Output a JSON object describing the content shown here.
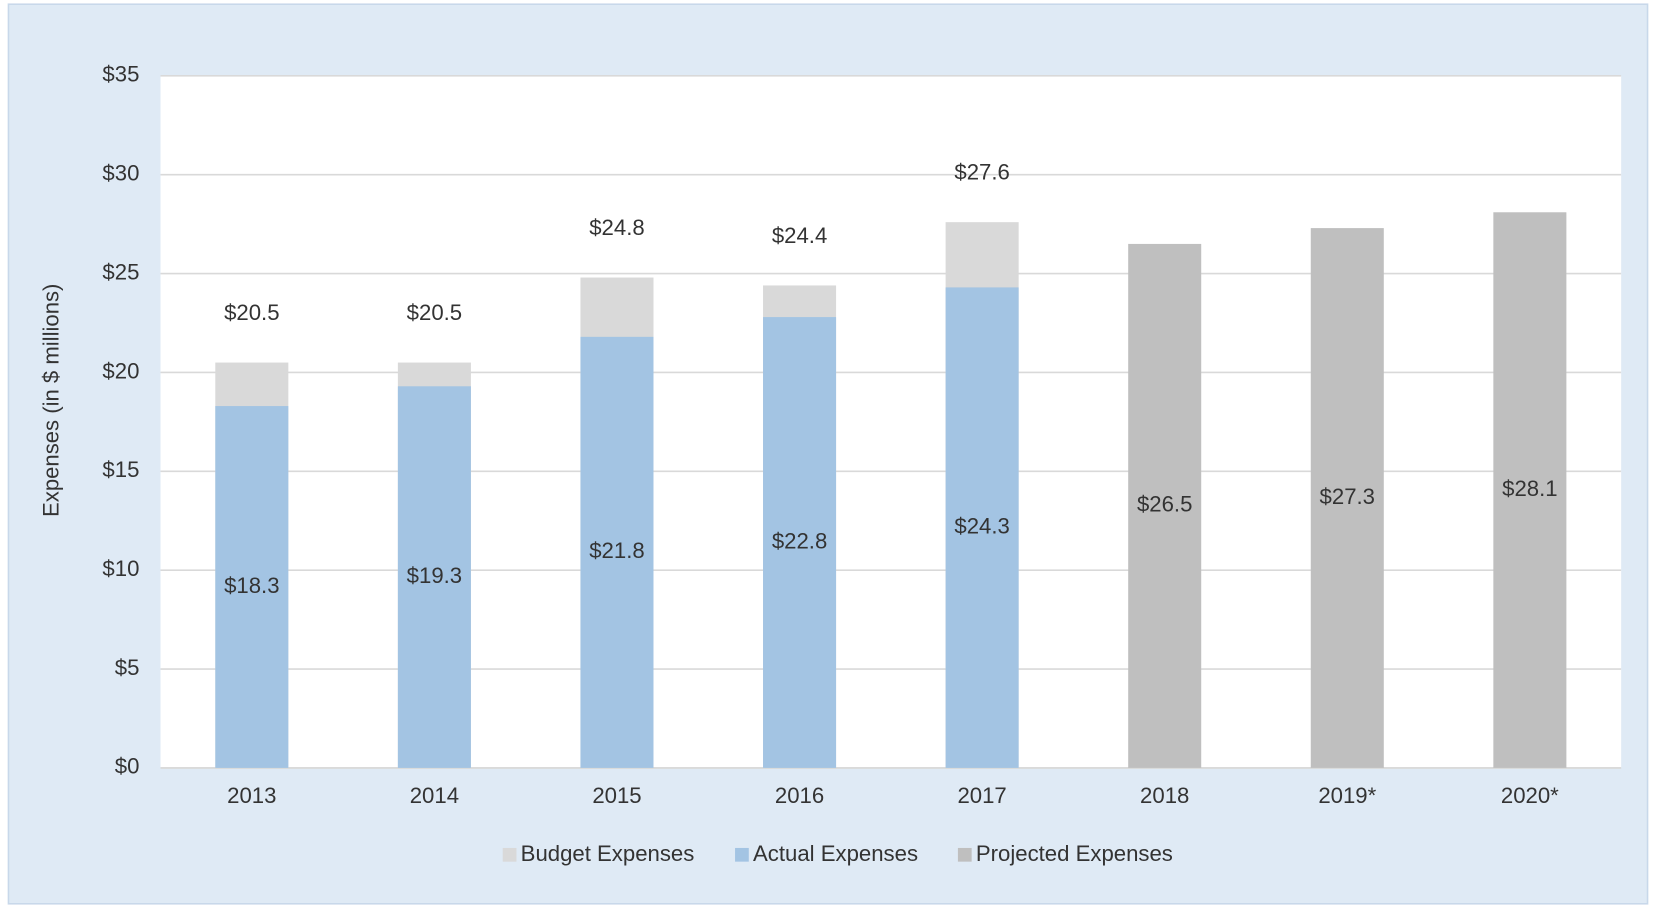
{
  "chart_data": {
    "type": "bar",
    "categories": [
      "2013",
      "2014",
      "2015",
      "2016",
      "2017",
      "2018",
      "2019*",
      "2020*"
    ],
    "series": [
      {
        "name": "Budget Expenses",
        "color": "#d9d9d9",
        "values": [
          20.5,
          20.5,
          24.8,
          24.4,
          27.6,
          null,
          null,
          null
        ],
        "value_labels": [
          "$20.5",
          "$20.5",
          "$24.8",
          "$24.4",
          "$27.6",
          null,
          null,
          null
        ]
      },
      {
        "name": "Actual Expenses",
        "color": "#a3c4e3",
        "values": [
          18.3,
          19.3,
          21.8,
          22.8,
          24.3,
          null,
          null,
          null
        ],
        "value_labels": [
          "$18.3",
          "$19.3",
          "$21.8",
          "$22.8",
          "$24.3",
          null,
          null,
          null
        ]
      },
      {
        "name": "Projected Expenses",
        "color": "#bfbfbf",
        "values": [
          null,
          null,
          null,
          null,
          null,
          26.5,
          27.3,
          28.1
        ],
        "value_labels": [
          null,
          null,
          null,
          null,
          null,
          "$26.5",
          "$27.3",
          "$28.1"
        ]
      }
    ],
    "y_label": "Expenses (in $ millions)",
    "ylim": [
      0,
      35
    ],
    "yticks": [
      {
        "value": 0,
        "label": "$0"
      },
      {
        "value": 5,
        "label": "$5"
      },
      {
        "value": 10,
        "label": "$10"
      },
      {
        "value": 15,
        "label": "$15"
      },
      {
        "value": 20,
        "label": "$20"
      },
      {
        "value": 25,
        "label": "$25"
      },
      {
        "value": 30,
        "label": "$30"
      },
      {
        "value": 35,
        "label": "$35"
      }
    ],
    "grid": true,
    "legend": "bottom"
  }
}
